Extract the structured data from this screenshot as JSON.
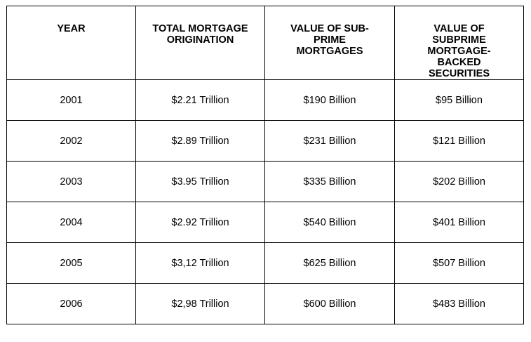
{
  "table": {
    "headers": [
      "YEAR",
      "TOTAL MORTGAGE ORIGINATION",
      "VALUE OF SUB-PRIME MORTGAGES",
      "VALUE OF SUBPRIME MORTGAGE-BACKED SECURITIES"
    ],
    "rows": [
      [
        "2001",
        "$2.21 Trillion",
        "$190 Billion",
        "$95 Billion"
      ],
      [
        "2002",
        "$2.89 Trillion",
        "$231 Billion",
        "$121 Billion"
      ],
      [
        "2003",
        "$3.95 Trillion",
        "$335 Billion",
        "$202 Billion"
      ],
      [
        "2004",
        "$2.92 Trillion",
        "$540 Billion",
        "$401 Billion"
      ],
      [
        "2005",
        "$3,12 Trillion",
        "$625 Billion",
        "$507 Billion"
      ],
      [
        "2006",
        "$2,98 Trillion",
        "$600 Billion",
        "$483 Billion"
      ]
    ]
  }
}
